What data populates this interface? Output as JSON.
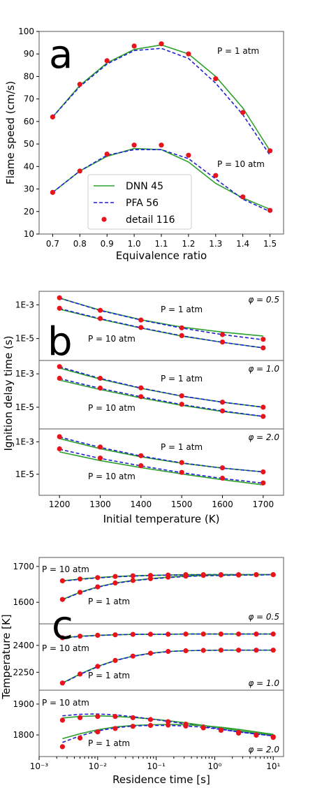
{
  "colors": {
    "dnn": "#2ca02c",
    "pfa": "#1f1fd6",
    "detail": "#e8141c"
  },
  "chart_data": [
    {
      "panel": "a",
      "type": "line",
      "xlabel": "Equivalence ratio",
      "ylabel": "Flame speed (cm/s)",
      "xlim": [
        0.7,
        1.5
      ],
      "ylim": [
        10,
        100
      ],
      "xticks": [
        "0.7",
        "0.8",
        "0.9",
        "1.0",
        "1.1",
        "1.2",
        "1.3",
        "1.4",
        "1.5"
      ],
      "yticks": [
        "10",
        "20",
        "30",
        "40",
        "50",
        "60",
        "70",
        "80",
        "90",
        "100"
      ],
      "legend": {
        "placement": "lower-left",
        "entries": [
          "DNN 45",
          "PFA 56",
          "detail 116"
        ]
      },
      "x": [
        0.7,
        0.8,
        0.9,
        1.0,
        1.1,
        1.2,
        1.3,
        1.4,
        1.5
      ],
      "groups": [
        {
          "label": "P = 1 atm",
          "series": [
            {
              "name": "DNN 45",
              "values": [
                62,
                76,
                86,
                92,
                94,
                90,
                80,
                66,
                47
              ]
            },
            {
              "name": "PFA 56",
              "values": [
                62,
                75.5,
                85.5,
                91.5,
                92.5,
                88,
                77,
                63,
                45
              ]
            },
            {
              "name": "detail 116",
              "values": [
                62,
                76.5,
                87,
                93.5,
                94.5,
                90,
                79,
                64,
                47
              ]
            }
          ]
        },
        {
          "label": "P = 10 atm",
          "series": [
            {
              "name": "DNN 45",
              "values": [
                28.5,
                38,
                44.5,
                48,
                47.5,
                42,
                32.5,
                26,
                21
              ]
            },
            {
              "name": "PFA 56",
              "values": [
                28.5,
                38,
                45,
                47.5,
                47.5,
                43.5,
                34.5,
                25.5,
                20
              ]
            },
            {
              "name": "detail 116",
              "values": [
                28.5,
                38,
                45.5,
                49.5,
                49.5,
                45,
                36,
                26.5,
                20.5
              ]
            }
          ]
        }
      ]
    },
    {
      "panel": "b",
      "type": "line",
      "xlabel": "Initial temperature (K)",
      "ylabel": "Ignition delay time (s)",
      "xlim": [
        1150,
        1750
      ],
      "xticks": [
        "1200",
        "1300",
        "1400",
        "1500",
        "1600",
        "1700"
      ],
      "yticks": [
        "1E-3",
        "1E-5"
      ],
      "x": [
        1200,
        1300,
        1400,
        1500,
        1600,
        1700
      ],
      "subplots": [
        {
          "phi": "φ = 0.5",
          "groups": [
            {
              "label": "P = 1 atm",
              "dnn": [
                0.0025,
                0.00048,
                0.00013,
                4.8e-05,
                2.4e-05,
                1.4e-05
              ],
              "pfa": [
                0.0025,
                0.00046,
                0.000125,
                4.2e-05,
                1.7e-05,
                8.5e-06
              ],
              "detail": [
                0.0026,
                0.00047,
                0.000125,
                4.3e-05,
                1.7e-05,
                9e-06
              ]
            },
            {
              "label": "P = 10 atm",
              "dnn": [
                0.00055,
                0.00014,
                4.2e-05,
                1.4e-05,
                6e-06,
                2.8e-06
              ],
              "pfa": [
                0.0006,
                0.00015,
                4.4e-05,
                1.45e-05,
                6e-06,
                2.8e-06
              ],
              "detail": [
                0.00062,
                0.000155,
                4.5e-05,
                1.5e-05,
                6.2e-06,
                2.8e-06
              ]
            }
          ]
        },
        {
          "phi": "φ = 1.0",
          "groups": [
            {
              "label": "P = 1 atm",
              "dnn": [
                0.0022,
                0.00048,
                0.000135,
                4.6e-05,
                2e-05,
                1e-05
              ],
              "pfa": [
                0.0026,
                0.00053,
                0.00014,
                4.7e-05,
                2e-05,
                1e-05
              ],
              "detail": [
                0.0027,
                0.00054,
                0.000145,
                4.8e-05,
                2e-05,
                1e-05
              ]
            },
            {
              "label": "P = 10 atm",
              "dnn": [
                0.00042,
                0.000115,
                3.6e-05,
                1.3e-05,
                5.5e-06,
                2.8e-06
              ],
              "pfa": [
                0.00052,
                0.000135,
                4.2e-05,
                1.45e-05,
                6e-06,
                2.8e-06
              ],
              "detail": [
                0.00054,
                0.00014,
                4.3e-05,
                1.5e-05,
                6e-06,
                2.8e-06
              ]
            }
          ]
        },
        {
          "phi": "φ = 2.0",
          "groups": [
            {
              "label": "P = 1 atm",
              "dnn": [
                0.0016,
                0.00038,
                0.00012,
                4.8e-05,
                2.4e-05,
                1.4e-05
              ],
              "pfa": [
                0.002,
                0.00046,
                0.000135,
                5e-05,
                2.4e-05,
                1.4e-05
              ],
              "detail": [
                0.0021,
                0.00048,
                0.00014,
                5.3e-05,
                2.5e-05,
                1.4e-05
              ]
            },
            {
              "label": "P = 10 atm",
              "dnn": [
                0.00024,
                7e-05,
                2.6e-05,
                1.05e-05,
                4.6e-06,
                2.2e-06
              ],
              "pfa": [
                0.00035,
                9.5e-05,
                3.3e-05,
                1.25e-05,
                5.5e-06,
                2.8e-06
              ],
              "detail": [
                0.00037,
                0.0001,
                3.4e-05,
                1.3e-05,
                5.7e-06,
                2.9e-06
              ]
            }
          ]
        }
      ]
    },
    {
      "panel": "c",
      "type": "line",
      "xlabel": "Residence time [s]",
      "ylabel": "Temperature [K]",
      "xscale": "log",
      "xlim": [
        0.001,
        15
      ],
      "xticks": [
        "10⁻³",
        "10⁻²",
        "10⁻¹",
        "10⁰",
        "10¹"
      ],
      "x": [
        0.0025,
        0.005,
        0.01,
        0.02,
        0.04,
        0.08,
        0.16,
        0.32,
        0.64,
        1.28,
        2.56,
        5.12,
        10
      ],
      "subplots": [
        {
          "phi": "φ = 0.5",
          "ylim": [
            1540,
            1725
          ],
          "yticks": [
            1600,
            1700
          ],
          "groups": [
            {
              "label": "P = 10 atm",
              "dnn": [
                1660,
                1665,
                1669,
                1672,
                1674,
                1675,
                1676,
                1677,
                1677,
                1677,
                1677,
                1677,
                1677
              ],
              "pfa": [
                1659,
                1664,
                1668,
                1671,
                1673,
                1675,
                1676,
                1676,
                1677,
                1677,
                1677,
                1677,
                1677
              ],
              "detail": [
                1660,
                1665,
                1669,
                1672,
                1674,
                1675,
                1676,
                1677,
                1677,
                1677,
                1677,
                1677,
                1677
              ]
            },
            {
              "label": "P = 1 atm",
              "dnn": [
                1608,
                1628,
                1643,
                1654,
                1661,
                1666,
                1670,
                1673,
                1675,
                1676,
                1676,
                1677,
                1677
              ],
              "pfa": [
                1607,
                1627,
                1642,
                1653,
                1660,
                1665,
                1669,
                1672,
                1674,
                1675,
                1676,
                1676,
                1677
              ],
              "detail": [
                1608,
                1628,
                1643,
                1654,
                1661,
                1666,
                1670,
                1673,
                1675,
                1676,
                1676,
                1677,
                1677
              ]
            }
          ]
        },
        {
          "phi": "φ = 1.0",
          "ylim": [
            2150,
            2520
          ],
          "yticks": [
            2250,
            2400
          ],
          "groups": [
            {
              "label": "P = 10 atm",
              "dnn": [
                2442,
                2451,
                2456,
                2459,
                2461,
                2462,
                2462,
                2463,
                2463,
                2463,
                2463,
                2463,
                2463
              ],
              "pfa": [
                2441,
                2450,
                2455,
                2459,
                2461,
                2462,
                2462,
                2463,
                2463,
                2463,
                2463,
                2463,
                2463
              ],
              "detail": [
                2442,
                2451,
                2456,
                2459,
                2461,
                2462,
                2462,
                2463,
                2463,
                2463,
                2463,
                2463,
                2463
              ]
            },
            {
              "label": "P = 1 atm",
              "dnn": [
                2190,
                2240,
                2283,
                2316,
                2340,
                2356,
                2366,
                2370,
                2372,
                2373,
                2373,
                2373,
                2373
              ],
              "pfa": [
                2188,
                2238,
                2281,
                2315,
                2339,
                2355,
                2365,
                2370,
                2372,
                2373,
                2373,
                2373,
                2373
              ],
              "detail": [
                2190,
                2240,
                2283,
                2316,
                2340,
                2356,
                2366,
                2370,
                2372,
                2373,
                2373,
                2373,
                2373
              ]
            }
          ]
        },
        {
          "phi": "φ = 2.0",
          "ylim": [
            1730,
            1945
          ],
          "yticks": [
            1800,
            1900
          ],
          "groups": [
            {
              "label": "P = 10 atm",
              "dnn": [
                1855,
                1860,
                1862,
                1860,
                1857,
                1852,
                1846,
                1839,
                1831,
                1823,
                1814,
                1806,
                1800
              ],
              "pfa": [
                1862,
                1867,
                1868,
                1865,
                1859,
                1852,
                1844,
                1836,
                1828,
                1819,
                1810,
                1803,
                1797
              ],
              "detail": [
                1848,
                1856,
                1860,
                1860,
                1856,
                1850,
                1843,
                1835,
                1826,
                1817,
                1809,
                1801,
                1794
              ]
            },
            {
              "label": "P = 1 atm",
              "dnn": [
                1788,
                1804,
                1817,
                1826,
                1831,
                1833,
                1834,
                1833,
                1830,
                1825,
                1818,
                1810,
                1802
              ],
              "pfa": [
                1776,
                1797,
                1813,
                1823,
                1829,
                1831,
                1831,
                1829,
                1825,
                1818,
                1810,
                1803,
                1797
              ],
              "detail": [
                1762,
                1790,
                1810,
                1821,
                1828,
                1831,
                1832,
                1829,
                1823,
                1815,
                1806,
                1799,
                1792
              ]
            }
          ]
        }
      ]
    }
  ]
}
